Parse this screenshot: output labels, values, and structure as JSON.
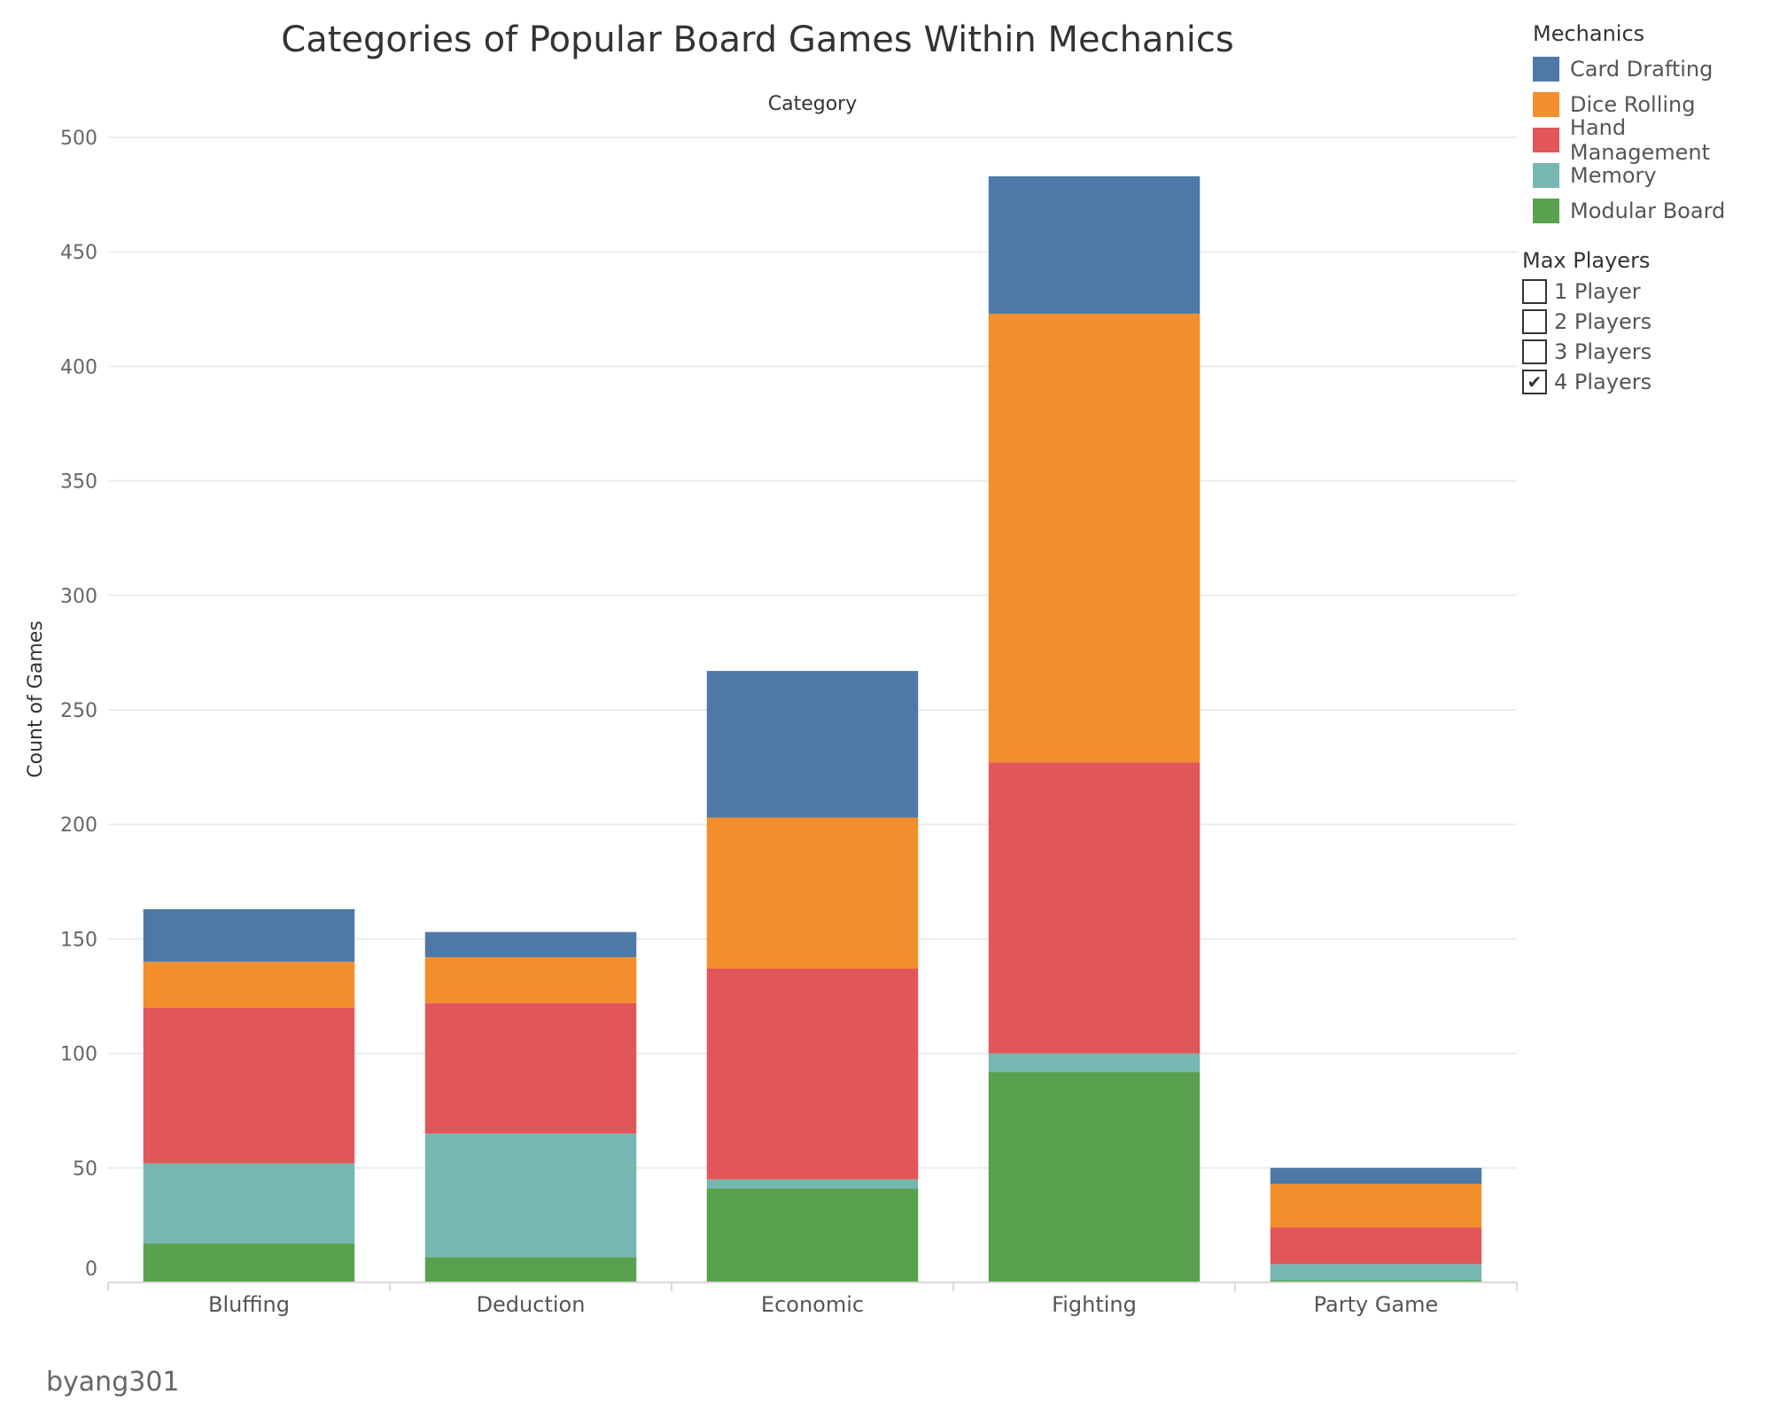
{
  "chart_data": {
    "type": "bar",
    "stacked": true,
    "title": "Categories of Popular Board Games Within Mechanics",
    "xlabel": "Category",
    "ylabel": "Count of Games",
    "ylim": [
      0,
      500
    ],
    "yticks": [
      0,
      50,
      100,
      150,
      200,
      250,
      300,
      350,
      400,
      450,
      500
    ],
    "grid": true,
    "legend_position": "top-right",
    "categories": [
      "Bluffing",
      "Deduction",
      "Economic",
      "Fighting",
      "Party Game"
    ],
    "series": [
      {
        "name": "Modular Board",
        "color": "#59a14f",
        "values": [
          17,
          11,
          41,
          92,
          1
        ]
      },
      {
        "name": "Memory",
        "color": "#76b7b2",
        "values": [
          35,
          54,
          4,
          8,
          7
        ]
      },
      {
        "name": "Hand Management",
        "color": "#e15759",
        "values": [
          68,
          57,
          92,
          127,
          16
        ]
      },
      {
        "name": "Dice Rolling",
        "color": "#f28e2b",
        "values": [
          20,
          20,
          66,
          196,
          19
        ]
      },
      {
        "name": "Card Drafting",
        "color": "#4e79a7",
        "values": [
          23,
          11,
          64,
          60,
          7
        ]
      }
    ]
  },
  "legend": {
    "title": "Mechanics",
    "items": [
      {
        "label": "Card Drafting",
        "color": "#4e79a7"
      },
      {
        "label": "Dice Rolling",
        "color": "#f28e2b"
      },
      {
        "label": "Hand Management",
        "color": "#e15759"
      },
      {
        "label": "Memory",
        "color": "#76b7b2"
      },
      {
        "label": "Modular Board",
        "color": "#59a14f"
      }
    ]
  },
  "filter": {
    "title": "Max Players",
    "options": [
      {
        "label": "1 Player",
        "checked": false
      },
      {
        "label": "2 Players",
        "checked": false
      },
      {
        "label": "3 Players",
        "checked": false
      },
      {
        "label": "4 Players",
        "checked": true
      }
    ]
  },
  "footer": {
    "author": "byang301"
  }
}
